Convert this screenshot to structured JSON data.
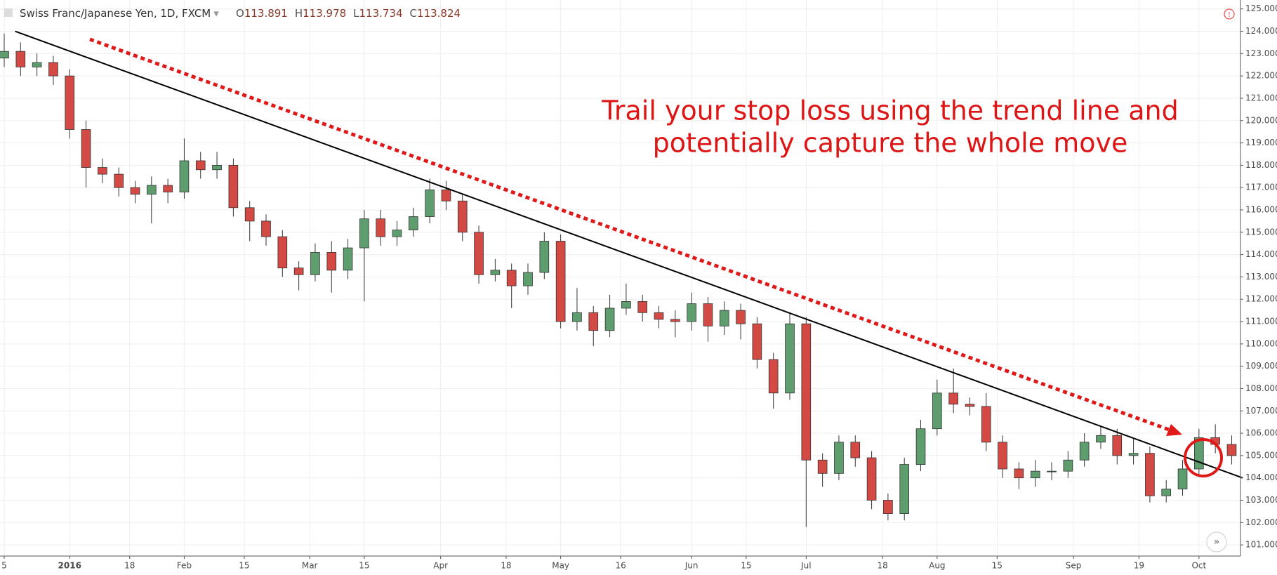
{
  "chart_data": {
    "type": "candlestick",
    "title": "Swiss Franc/Japanese Yen, 1D, FXCM",
    "ohlc": [
      {
        "label": "O",
        "value": 113.891
      },
      {
        "label": "H",
        "value": 113.978
      },
      {
        "label": "L",
        "value": 113.734
      },
      {
        "label": "C",
        "value": 113.824
      }
    ],
    "annotation": [
      "Trail your stop loss using the trend line and",
      "potentially capture the whole move"
    ],
    "up_color": "#5e9e6e",
    "down_color": "#d24a43",
    "trend_color": "#000000",
    "grid": true,
    "xlim": [
      0,
      227
    ],
    "ylim": [
      100.5,
      125.4
    ],
    "xticks": [
      {
        "value": 0,
        "label": "5"
      },
      {
        "value": 12,
        "label": "2016"
      },
      {
        "value": 23,
        "label": "18"
      },
      {
        "value": 33,
        "label": "Feb"
      },
      {
        "value": 44,
        "label": "15"
      },
      {
        "value": 56,
        "label": "Mar"
      },
      {
        "value": 66,
        "label": "15"
      },
      {
        "value": 80,
        "label": "Apr"
      },
      {
        "value": 92,
        "label": "18"
      },
      {
        "value": 102,
        "label": "May"
      },
      {
        "value": 113,
        "label": "16"
      },
      {
        "value": 126,
        "label": "Jun"
      },
      {
        "value": 136,
        "label": "15"
      },
      {
        "value": 147,
        "label": "Jul"
      },
      {
        "value": 161,
        "label": "18"
      },
      {
        "value": 171,
        "label": "Aug"
      },
      {
        "value": 182,
        "label": "15"
      },
      {
        "value": 196,
        "label": "Sep"
      },
      {
        "value": 208,
        "label": "19"
      },
      {
        "value": 219,
        "label": "Oct"
      }
    ],
    "yticks": [
      {
        "value": 101,
        "label": "101.000"
      },
      {
        "value": 102,
        "label": "102.000"
      },
      {
        "value": 103,
        "label": "103.000"
      },
      {
        "value": 104,
        "label": "104.000"
      },
      {
        "value": 105,
        "label": "105.000"
      },
      {
        "value": 106,
        "label": "106.000"
      },
      {
        "value": 107,
        "label": "107.000"
      },
      {
        "value": 108,
        "label": "108.000"
      },
      {
        "value": 109,
        "label": "109.000"
      },
      {
        "value": 110,
        "label": "110.000"
      },
      {
        "value": 111,
        "label": "111.000"
      },
      {
        "value": 112,
        "label": "112.000"
      },
      {
        "value": 113,
        "label": "113.000"
      },
      {
        "value": 114,
        "label": "114.000"
      },
      {
        "value": 115,
        "label": "115.000"
      },
      {
        "value": 116,
        "label": "116.000"
      },
      {
        "value": 117,
        "label": "117.000"
      },
      {
        "value": 118,
        "label": "118.000"
      },
      {
        "value": 119,
        "label": "119.000"
      },
      {
        "value": 120,
        "label": "120.000"
      },
      {
        "value": 121,
        "label": "121.000"
      },
      {
        "value": 122,
        "label": "122.000"
      },
      {
        "value": 123,
        "label": "123.000"
      },
      {
        "value": 124,
        "label": "124.000"
      },
      {
        "value": 125,
        "label": "125.000"
      }
    ],
    "x": [
      0,
      3,
      6,
      9,
      12,
      15,
      18,
      21,
      24,
      27,
      30,
      33,
      36,
      39,
      42,
      45,
      48,
      51,
      54,
      57,
      60,
      63,
      66,
      69,
      72,
      75,
      78,
      81,
      84,
      87,
      90,
      93,
      96,
      99,
      102,
      105,
      108,
      111,
      114,
      117,
      120,
      123,
      126,
      129,
      132,
      135,
      138,
      141,
      144,
      147,
      150,
      153,
      156,
      159,
      162,
      165,
      168,
      171,
      174,
      177,
      180,
      183,
      186,
      189,
      192,
      195,
      198,
      201,
      204,
      207,
      210,
      213,
      216,
      219,
      222,
      225
    ],
    "open": [
      122.8,
      123.1,
      122.4,
      122.6,
      122.0,
      119.6,
      117.9,
      117.6,
      117.0,
      116.7,
      117.1,
      116.8,
      118.2,
      117.8,
      118.0,
      116.1,
      115.5,
      114.8,
      113.4,
      113.1,
      114.1,
      113.3,
      114.3,
      115.6,
      114.8,
      115.1,
      115.7,
      116.9,
      116.4,
      115.0,
      113.1,
      113.3,
      112.6,
      113.2,
      114.6,
      111.0,
      111.4,
      110.6,
      111.6,
      111.9,
      111.4,
      111.1,
      111.0,
      111.8,
      110.8,
      111.5,
      110.9,
      109.3,
      107.8,
      110.9,
      104.8,
      104.2,
      105.6,
      104.9,
      103.0,
      102.4,
      104.6,
      106.2,
      107.8,
      107.3,
      107.2,
      105.6,
      104.4,
      104.0,
      104.3,
      104.3,
      104.8,
      105.6,
      105.9,
      105.0,
      105.1,
      103.2,
      103.5,
      104.4,
      105.8,
      105.5
    ],
    "high": [
      123.9,
      123.5,
      123.0,
      122.9,
      122.3,
      120.0,
      118.3,
      117.9,
      117.3,
      117.5,
      117.4,
      119.2,
      118.6,
      118.6,
      118.3,
      116.4,
      115.8,
      115.1,
      113.7,
      114.5,
      114.6,
      114.7,
      116.0,
      116.0,
      115.5,
      116.1,
      117.4,
      117.3,
      116.7,
      115.3,
      113.8,
      113.6,
      113.6,
      115.0,
      114.9,
      112.5,
      111.7,
      112.2,
      112.7,
      112.2,
      111.7,
      111.5,
      112.3,
      112.1,
      111.9,
      111.8,
      111.2,
      109.6,
      111.4,
      111.2,
      105.1,
      105.9,
      105.9,
      105.2,
      103.3,
      104.9,
      106.6,
      108.4,
      108.9,
      107.6,
      107.8,
      105.9,
      104.7,
      104.8,
      104.7,
      105.2,
      106.0,
      106.3,
      106.2,
      105.8,
      105.4,
      103.9,
      104.8,
      106.2,
      106.4,
      105.9
    ],
    "low": [
      122.4,
      122.0,
      122.0,
      121.6,
      119.2,
      117.0,
      117.2,
      116.6,
      116.3,
      115.4,
      116.3,
      116.5,
      117.4,
      117.4,
      115.7,
      114.6,
      114.4,
      113.0,
      112.4,
      112.8,
      112.3,
      112.9,
      111.9,
      114.4,
      114.4,
      114.8,
      115.4,
      116.0,
      114.6,
      112.7,
      112.8,
      111.6,
      112.2,
      112.9,
      110.7,
      110.6,
      109.9,
      110.3,
      111.3,
      111.0,
      110.7,
      110.3,
      110.6,
      110.1,
      110.4,
      110.2,
      108.9,
      107.1,
      107.5,
      101.8,
      103.6,
      103.9,
      104.5,
      102.6,
      102.1,
      102.1,
      104.3,
      105.9,
      106.9,
      106.8,
      105.2,
      104.0,
      103.5,
      103.6,
      103.9,
      104.0,
      104.5,
      105.3,
      104.6,
      104.6,
      102.9,
      102.9,
      103.2,
      104.1,
      105.1,
      104.6
    ],
    "close": [
      123.1,
      122.4,
      122.6,
      122.0,
      119.6,
      117.9,
      117.6,
      117.0,
      116.7,
      117.1,
      116.8,
      118.2,
      117.8,
      118.0,
      116.1,
      115.5,
      114.8,
      113.4,
      113.1,
      114.1,
      113.3,
      114.3,
      115.6,
      114.8,
      115.1,
      115.7,
      116.9,
      116.4,
      115.0,
      113.1,
      113.3,
      112.6,
      113.2,
      114.6,
      111.0,
      111.4,
      110.6,
      111.6,
      111.9,
      111.4,
      111.1,
      111.0,
      111.8,
      110.8,
      111.5,
      110.9,
      109.3,
      107.8,
      110.9,
      104.8,
      104.2,
      105.6,
      104.9,
      103.0,
      102.4,
      104.6,
      106.2,
      107.8,
      107.3,
      107.2,
      105.6,
      104.4,
      104.0,
      104.3,
      104.3,
      104.8,
      105.6,
      105.9,
      105.0,
      105.1,
      103.2,
      103.5,
      104.4,
      105.8,
      105.5,
      105.0
    ],
    "trend_line": {
      "x": [
        2,
        227
      ],
      "y": [
        124.0,
        104.0
      ]
    }
  }
}
